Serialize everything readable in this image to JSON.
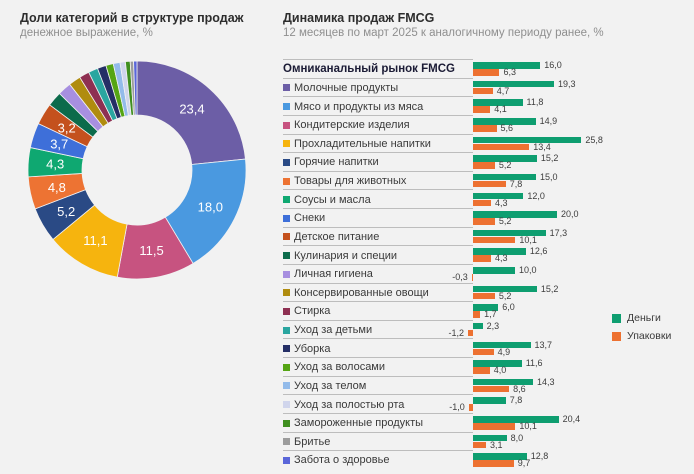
{
  "left_chart": {
    "title": "Доли категорий в структуре продаж",
    "subtitle": "денежное выражение, %"
  },
  "right_chart": {
    "title": "Динамика продаж FMCG",
    "subtitle": "12 месяцев по март 2025 к аналогичному периоду ранее, %"
  },
  "legend": {
    "items": [
      {
        "label": "Деньги",
        "color": "#0e9e70"
      },
      {
        "label": "Упаковки",
        "color": "#ed7131"
      }
    ]
  },
  "chart_data": [
    {
      "type": "pie",
      "donut": true,
      "title": "Доли категорий в структуре продаж",
      "unit": "%",
      "label_threshold": 3,
      "small_segments_estimated": true,
      "categories": [
        "Молочные продукты",
        "Мясо и продукты из мяса",
        "Кондитерские изделия",
        "Прохладительные напитки",
        "Горячие напитки",
        "Товары для животных",
        "Соусы и масла",
        "Снеки",
        "Детское питание",
        "Кулинария и специи",
        "Личная гигиена",
        "Консервированные овощи",
        "Стирка",
        "Уход за детьми",
        "Уборка",
        "Уход за волосами",
        "Уход за телом",
        "Уход за полостью рта",
        "Замороженные продукты",
        "Бритье",
        "Забота о здоровье"
      ],
      "values": [
        23.4,
        18.0,
        11.5,
        11.1,
        5.2,
        4.8,
        4.3,
        3.7,
        3.2,
        2.2,
        2.0,
        1.8,
        1.5,
        1.4,
        1.3,
        1.1,
        1.0,
        0.8,
        0.7,
        0.5,
        0.5
      ],
      "shown_labels": [
        "23,4",
        "18,0",
        "11,5",
        "11,1",
        "5,2",
        "4,8",
        "4,3",
        "3,7",
        "3,2"
      ],
      "colors": [
        "#6c5ea6",
        "#4a99e0",
        "#c75380",
        "#f6b40e",
        "#2a4a85",
        "#ed7333",
        "#0fa871",
        "#3e6fd9",
        "#c4511d",
        "#0c6b4b",
        "#a78fe0",
        "#b08c0f",
        "#8e3052",
        "#2aa6a0",
        "#252f66",
        "#55a514",
        "#93bbea",
        "#d0d5ec",
        "#3f8f1f",
        "#9c9c9c",
        "#5a66d9"
      ]
    },
    {
      "type": "bar",
      "orientation": "horizontal",
      "title": "Динамика продаж FMCG",
      "unit": "%",
      "xlim": [
        -2,
        28
      ],
      "categories": [
        "Омниканальный рынок FMCG",
        "Молочные продукты",
        "Мясо и продукты из мяса",
        "Кондитерские изделия",
        "Прохладительные напитки",
        "Горячие напитки",
        "Товары для животных",
        "Соусы и масла",
        "Снеки",
        "Детское питание",
        "Кулинария и специи",
        "Личная гигиена",
        "Консервированные овощи",
        "Стирка",
        "Уход за детьми",
        "Уборка",
        "Уход за волосами",
        "Уход за телом",
        "Уход за полостью рта",
        "Замороженные продукты",
        "Бритье",
        "Забота о здоровье"
      ],
      "markers": [
        null,
        "#6c5ea6",
        "#4a99e0",
        "#c75380",
        "#f6b40e",
        "#2a4a85",
        "#ed7333",
        "#0fa871",
        "#3e6fd9",
        "#c4511d",
        "#0c6b4b",
        "#a78fe0",
        "#b08c0f",
        "#8e3052",
        "#2aa6a0",
        "#252f66",
        "#55a514",
        "#93bbea",
        "#d0d5ec",
        "#3f8f1f",
        "#9c9c9c",
        "#5a66d9"
      ],
      "series": [
        {
          "name": "Деньги",
          "color": "#0e9e70",
          "values": [
            16.0,
            19.3,
            11.8,
            14.9,
            25.8,
            15.2,
            15.0,
            12.0,
            20.0,
            17.3,
            12.6,
            10.0,
            15.2,
            6.0,
            2.3,
            13.7,
            11.6,
            14.3,
            7.8,
            20.4,
            8.0,
            12.8
          ]
        },
        {
          "name": "Упаковки",
          "color": "#ed7131",
          "values": [
            6.3,
            4.7,
            4.1,
            5.6,
            13.4,
            5.2,
            7.8,
            4.3,
            5.2,
            10.1,
            4.3,
            -0.3,
            5.2,
            1.7,
            -1.2,
            4.9,
            4.0,
            8.6,
            -1.0,
            10.1,
            3.1,
            9.7
          ]
        }
      ]
    }
  ]
}
